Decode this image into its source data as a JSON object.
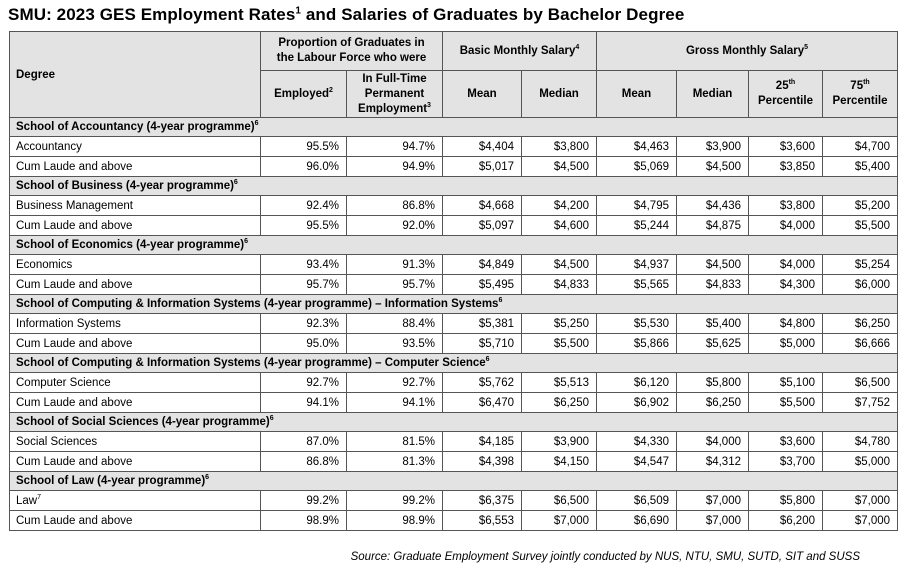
{
  "title": {
    "text_a": "SMU: 2023 GES Employment Rates",
    "sup": "1",
    "text_b": " and Salaries of Graduates by Bachelor Degree"
  },
  "headers": {
    "degree": "Degree",
    "proportion_line1": "Proportion of Graduates in",
    "proportion_line2": "the Labour Force who were",
    "basic_group": "Basic Monthly Salary",
    "basic_group_sup": "4",
    "gross_group": "Gross Monthly Salary",
    "gross_group_sup": "5",
    "employed": "Employed",
    "employed_sup": "2",
    "fulltime_line1": "In Full-Time",
    "fulltime_line2": "Permanent",
    "fulltime_line3": "Employment",
    "fulltime_sup": "3",
    "basic_mean": "Mean",
    "basic_median": "Median",
    "gross_mean": "Mean",
    "gross_median": "Median",
    "p25_num": "25",
    "p25_sup": "th",
    "p25_word": "Percentile",
    "p75_num": "75",
    "p75_sup": "th",
    "p75_word": "Percentile"
  },
  "schools": [
    {
      "name": "School of Accountancy (4-year programme)",
      "sup": "6",
      "rows": [
        {
          "degree": "Accountancy",
          "dsup": "",
          "employed": "95.5%",
          "fulltime": "94.7%",
          "basic_mean": "$4,404",
          "basic_median": "$3,800",
          "gross_mean": "$4,463",
          "gross_median": "$3,900",
          "p25": "$3,600",
          "p75": "$4,700"
        },
        {
          "degree": "Cum Laude and above",
          "dsup": "",
          "employed": "96.0%",
          "fulltime": "94.9%",
          "basic_mean": "$5,017",
          "basic_median": "$4,500",
          "gross_mean": "$5,069",
          "gross_median": "$4,500",
          "p25": "$3,850",
          "p75": "$5,400"
        }
      ]
    },
    {
      "name": "School of Business (4-year programme)",
      "sup": "6",
      "rows": [
        {
          "degree": "Business Management",
          "dsup": "",
          "employed": "92.4%",
          "fulltime": "86.8%",
          "basic_mean": "$4,668",
          "basic_median": "$4,200",
          "gross_mean": "$4,795",
          "gross_median": "$4,436",
          "p25": "$3,800",
          "p75": "$5,200"
        },
        {
          "degree": "Cum Laude and above",
          "dsup": "",
          "employed": "95.5%",
          "fulltime": "92.0%",
          "basic_mean": "$5,097",
          "basic_median": "$4,600",
          "gross_mean": "$5,244",
          "gross_median": "$4,875",
          "p25": "$4,000",
          "p75": "$5,500"
        }
      ]
    },
    {
      "name": "School of Economics (4-year programme)",
      "sup": "6",
      "rows": [
        {
          "degree": "Economics",
          "dsup": "",
          "employed": "93.4%",
          "fulltime": "91.3%",
          "basic_mean": "$4,849",
          "basic_median": "$4,500",
          "gross_mean": "$4,937",
          "gross_median": "$4,500",
          "p25": "$4,000",
          "p75": "$5,254"
        },
        {
          "degree": "Cum Laude and above",
          "dsup": "",
          "employed": "95.7%",
          "fulltime": "95.7%",
          "basic_mean": "$5,495",
          "basic_median": "$4,833",
          "gross_mean": "$5,565",
          "gross_median": "$4,833",
          "p25": "$4,300",
          "p75": "$6,000"
        }
      ]
    },
    {
      "name": "School of Computing & Information Systems (4-year programme) – Information Systems",
      "sup": "6",
      "rows": [
        {
          "degree": "Information Systems",
          "dsup": "",
          "employed": "92.3%",
          "fulltime": "88.4%",
          "basic_mean": "$5,381",
          "basic_median": "$5,250",
          "gross_mean": "$5,530",
          "gross_median": "$5,400",
          "p25": "$4,800",
          "p75": "$6,250"
        },
        {
          "degree": "Cum Laude and above",
          "dsup": "",
          "employed": "95.0%",
          "fulltime": "93.5%",
          "basic_mean": "$5,710",
          "basic_median": "$5,500",
          "gross_mean": "$5,866",
          "gross_median": "$5,625",
          "p25": "$5,000",
          "p75": "$6,666"
        }
      ]
    },
    {
      "name": "School of Computing & Information Systems (4-year programme) – Computer Science",
      "sup": "6",
      "rows": [
        {
          "degree": "Computer Science",
          "dsup": "",
          "employed": "92.7%",
          "fulltime": "92.7%",
          "basic_mean": "$5,762",
          "basic_median": "$5,513",
          "gross_mean": "$6,120",
          "gross_median": "$5,800",
          "p25": "$5,100",
          "p75": "$6,500"
        },
        {
          "degree": "Cum Laude and above",
          "dsup": "",
          "employed": "94.1%",
          "fulltime": "94.1%",
          "basic_mean": "$6,470",
          "basic_median": "$6,250",
          "gross_mean": "$6,902",
          "gross_median": "$6,250",
          "p25": "$5,500",
          "p75": "$7,752"
        }
      ]
    },
    {
      "name": "School of Social Sciences (4-year programme)",
      "sup": "6",
      "rows": [
        {
          "degree": "Social Sciences",
          "dsup": "",
          "employed": "87.0%",
          "fulltime": "81.5%",
          "basic_mean": "$4,185",
          "basic_median": "$3,900",
          "gross_mean": "$4,330",
          "gross_median": "$4,000",
          "p25": "$3,600",
          "p75": "$4,780"
        },
        {
          "degree": "Cum Laude and above",
          "dsup": "",
          "employed": "86.8%",
          "fulltime": "81.3%",
          "basic_mean": "$4,398",
          "basic_median": "$4,150",
          "gross_mean": "$4,547",
          "gross_median": "$4,312",
          "p25": "$3,700",
          "p75": "$5,000"
        }
      ]
    },
    {
      "name": "School of Law (4-year programme)",
      "sup": "6",
      "rows": [
        {
          "degree": "Law",
          "dsup": "7",
          "employed": "99.2%",
          "fulltime": "99.2%",
          "basic_mean": "$6,375",
          "basic_median": "$6,500",
          "gross_mean": "$6,509",
          "gross_median": "$7,000",
          "p25": "$5,800",
          "p75": "$7,000"
        },
        {
          "degree": "Cum Laude and above",
          "dsup": "",
          "employed": "98.9%",
          "fulltime": "98.9%",
          "basic_mean": "$6,553",
          "basic_median": "$7,000",
          "gross_mean": "$6,690",
          "gross_median": "$7,000",
          "p25": "$6,200",
          "p75": "$7,000"
        }
      ]
    }
  ],
  "source": "Source: Graduate Employment Survey jointly conducted by NUS, NTU, SMU, SUTD, SIT and SUSS"
}
